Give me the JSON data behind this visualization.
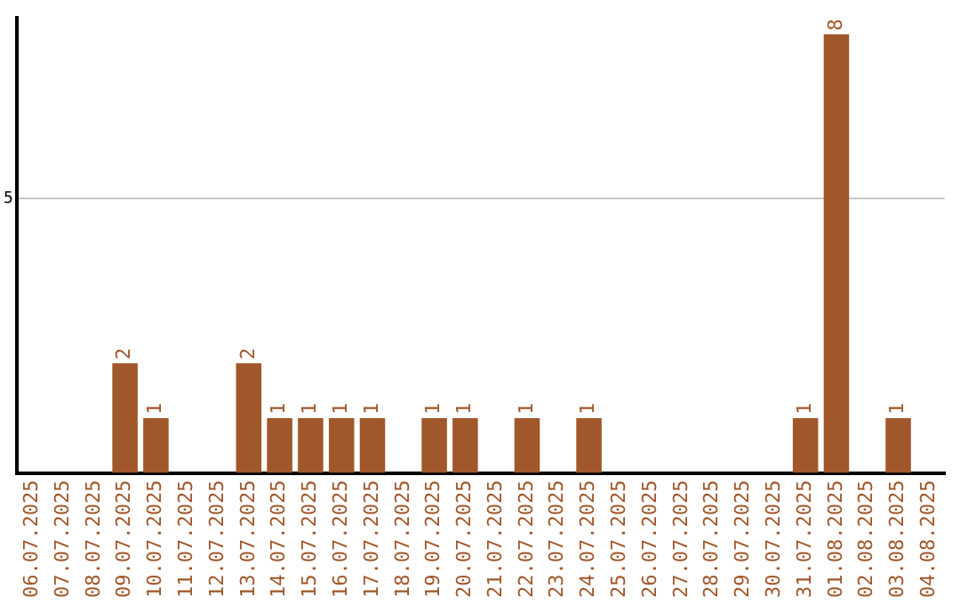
{
  "chart_data": {
    "type": "bar",
    "categories": [
      "06.07.2025",
      "07.07.2025",
      "08.07.2025",
      "09.07.2025",
      "10.07.2025",
      "11.07.2025",
      "12.07.2025",
      "13.07.2025",
      "14.07.2025",
      "15.07.2025",
      "16.07.2025",
      "17.07.2025",
      "18.07.2025",
      "19.07.2025",
      "20.07.2025",
      "21.07.2025",
      "22.07.2025",
      "23.07.2025",
      "24.07.2025",
      "25.07.2025",
      "26.07.2025",
      "27.07.2025",
      "28.07.2025",
      "29.07.2025",
      "30.07.2025",
      "31.07.2025",
      "01.08.2025",
      "02.08.2025",
      "03.08.2025",
      "04.08.2025"
    ],
    "values": [
      0,
      0,
      0,
      2,
      1,
      0,
      0,
      2,
      1,
      1,
      1,
      1,
      0,
      1,
      1,
      0,
      1,
      0,
      1,
      0,
      0,
      0,
      0,
      0,
      0,
      1,
      8,
      0,
      1,
      0
    ],
    "value_labels": [
      null,
      null,
      null,
      "2",
      "1",
      null,
      null,
      "2",
      "1",
      "1",
      "1",
      "1",
      null,
      "1",
      "1",
      null,
      "1",
      null,
      "1",
      null,
      null,
      null,
      null,
      null,
      null,
      "1",
      "8",
      null,
      "1",
      null
    ],
    "color": "#a0572a",
    "ylim": [
      0,
      8.3
    ],
    "yticks": [
      5
    ],
    "grid": "y",
    "legend": false
  }
}
